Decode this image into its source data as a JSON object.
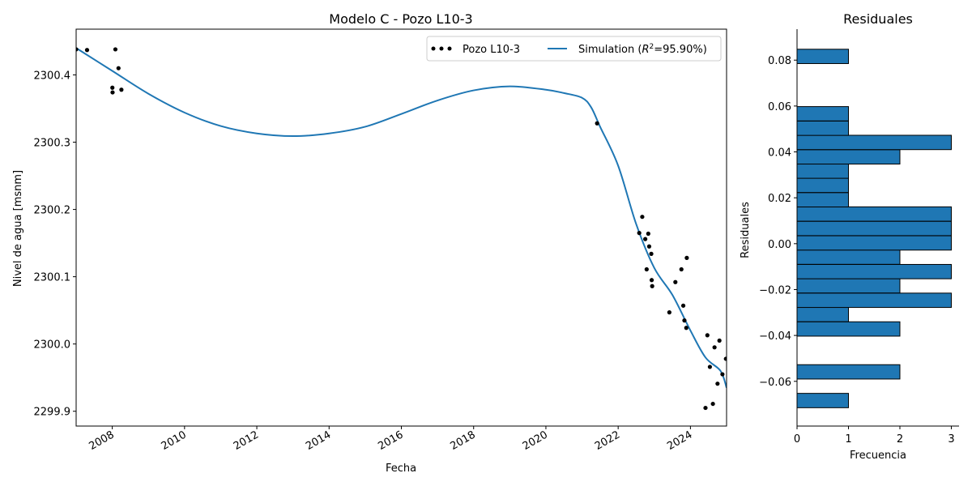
{
  "chart_data": [
    {
      "type": "line",
      "title": "Modelo C - Pozo L10-3",
      "xlabel": "Fecha",
      "ylabel": "Nivel de agua [msnm]",
      "xlim": [
        "2007-01-01",
        "2025-01-01"
      ],
      "ylim": [
        2299.878,
        2300.468
      ],
      "x_ticks": [
        "2008",
        "2010",
        "2012",
        "2014",
        "2016",
        "2018",
        "2020",
        "2022",
        "2024"
      ],
      "y_ticks": [
        "2299.9",
        "2300.0",
        "2300.1",
        "2300.2",
        "2300.3",
        "2300.4"
      ],
      "legend_position": "top-right",
      "series": [
        {
          "name": "Pozo L10-3",
          "kind": "scatter",
          "color": "#000000",
          "x": [
            "2007-01-01",
            "2007-04-20",
            "2008-01-02",
            "2008-01-04",
            "2008-02-02",
            "2008-03-03",
            "2008-04-02",
            "2021-06-01",
            "2022-08-01",
            "2022-09-01",
            "2022-10-01",
            "2022-10-15",
            "2022-11-01",
            "2022-11-10",
            "2022-12-01",
            "2022-12-05",
            "2022-12-10",
            "2023-06-01",
            "2023-08-01",
            "2023-10-01",
            "2023-10-20",
            "2023-11-01",
            "2023-11-20",
            "2023-11-25",
            "2024-06-01",
            "2024-06-20",
            "2024-07-15",
            "2024-08-15",
            "2024-09-01",
            "2024-10-01",
            "2024-10-20",
            "2024-11-20",
            "2024-12-25"
          ],
          "y": [
            2300.438,
            2300.437,
            2300.381,
            2300.374,
            2300.438,
            2300.41,
            2300.378,
            2300.328,
            2300.165,
            2300.189,
            2300.156,
            2300.111,
            2300.164,
            2300.145,
            2300.134,
            2300.095,
            2300.086,
            2300.047,
            2300.092,
            2300.111,
            2300.057,
            2300.035,
            2300.024,
            2300.128,
            2299.905,
            2300.013,
            2299.966,
            2299.911,
            2299.995,
            2299.941,
            2300.005,
            2299.955,
            2299.978
          ]
        },
        {
          "name": "Simulation ($R^2$=95.90%)",
          "kind": "line",
          "color": "#1f77b4",
          "x": [
            "2007-01-01",
            "2008-01-01",
            "2009-01-01",
            "2010-01-01",
            "2011-01-01",
            "2012-01-01",
            "2013-01-01",
            "2014-01-01",
            "2015-01-01",
            "2016-01-01",
            "2017-01-01",
            "2018-01-01",
            "2019-01-01",
            "2020-01-01",
            "2020-07-01",
            "2021-01-01",
            "2021-04-01",
            "2021-07-01",
            "2022-01-01",
            "2022-07-01",
            "2023-01-01",
            "2023-07-01",
            "2024-01-01",
            "2024-06-01",
            "2024-11-01",
            "2025-01-01"
          ],
          "y": [
            2300.44,
            2300.406,
            2300.372,
            2300.344,
            2300.324,
            2300.313,
            2300.309,
            2300.313,
            2300.323,
            2300.342,
            2300.362,
            2300.377,
            2300.383,
            2300.378,
            2300.373,
            2300.366,
            2300.352,
            2300.323,
            2300.265,
            2300.178,
            2300.113,
            2300.073,
            2300.02,
            2299.98,
            2299.96,
            2299.935
          ]
        }
      ]
    },
    {
      "type": "bar",
      "orientation": "horizontal",
      "title": "Residuales",
      "xlabel": "Frecuencia",
      "ylabel": "Residuales",
      "xlim": [
        0,
        3.15
      ],
      "ylim": [
        -0.0795,
        0.0935
      ],
      "x_ticks": [
        "0",
        "1",
        "2",
        "3"
      ],
      "y_ticks": [
        "−0.06",
        "−0.04",
        "−0.02",
        "0.00",
        "0.02",
        "0.04",
        "0.06",
        "0.08"
      ],
      "bin_width": 0.00625,
      "bar_color": "#1f77b4",
      "bins": [
        {
          "start": -0.0715,
          "count": 1
        },
        {
          "start": -0.059,
          "count": 2
        },
        {
          "start": -0.0403,
          "count": 2
        },
        {
          "start": -0.034,
          "count": 1
        },
        {
          "start": -0.0278,
          "count": 3
        },
        {
          "start": -0.0215,
          "count": 2
        },
        {
          "start": -0.0153,
          "count": 3
        },
        {
          "start": -0.009,
          "count": 2
        },
        {
          "start": -0.0028,
          "count": 3
        },
        {
          "start": 0.0035,
          "count": 3
        },
        {
          "start": 0.0098,
          "count": 3
        },
        {
          "start": 0.016,
          "count": 1
        },
        {
          "start": 0.0223,
          "count": 1
        },
        {
          "start": 0.0285,
          "count": 1
        },
        {
          "start": 0.0347,
          "count": 2
        },
        {
          "start": 0.041,
          "count": 3
        },
        {
          "start": 0.0472,
          "count": 1
        },
        {
          "start": 0.0535,
          "count": 1
        },
        {
          "start": 0.0785,
          "count": 1
        }
      ]
    }
  ]
}
